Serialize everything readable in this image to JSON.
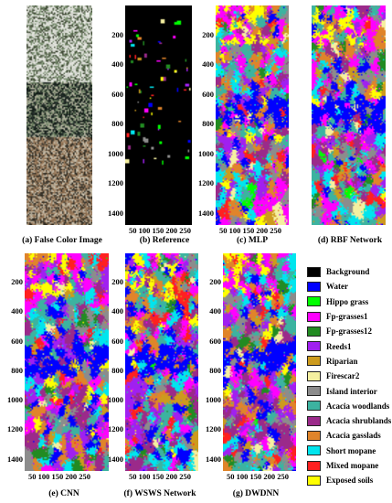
{
  "panels": [
    {
      "id": "a",
      "caption": "(a) False Color Image",
      "kind": "false-color",
      "show_y": false,
      "show_x": false
    },
    {
      "id": "b",
      "caption": "(b) Reference",
      "kind": "reference",
      "show_y": true,
      "show_x": true
    },
    {
      "id": "c",
      "caption": "(c) MLP",
      "kind": "classmap",
      "show_y": true,
      "show_x": true
    },
    {
      "id": "d",
      "caption": "(d) RBF Network",
      "kind": "classmap",
      "show_y": false,
      "show_x": false
    },
    {
      "id": "e",
      "caption": "(e) CNN",
      "kind": "classmap",
      "show_y": true,
      "show_x": true
    },
    {
      "id": "f",
      "caption": "(f) WSWS Network",
      "kind": "classmap",
      "show_y": true,
      "show_x": true
    },
    {
      "id": "g",
      "caption": "(g) DWDNN",
      "kind": "classmap",
      "show_y": true,
      "show_x": true
    }
  ],
  "y_ticks": [
    "200",
    "400",
    "600",
    "800",
    "1000",
    "1200",
    "1400"
  ],
  "x_ticks": "50 100 150 200 250",
  "legend": [
    {
      "label": "Background",
      "color": "#000000"
    },
    {
      "label": "Water",
      "color": "#0000ff"
    },
    {
      "label": "Hippo grass",
      "color": "#00ff00"
    },
    {
      "label": "Fp-grasses1",
      "color": "#ff00ff"
    },
    {
      "label": "Fp-grasses12",
      "color": "#228b22"
    },
    {
      "label": "Reeds1",
      "color": "#a020f0"
    },
    {
      "label": "Riparian",
      "color": "#cd9b1d"
    },
    {
      "label": "Firescar2",
      "color": "#f5f0a0"
    },
    {
      "label": "Island interior",
      "color": "#8c8c8c"
    },
    {
      "label": "Acacia woodlands",
      "color": "#3cb3a0"
    },
    {
      "label": "Acacia shrublands",
      "color": "#9b2a8a"
    },
    {
      "label": "Acacia gasslads",
      "color": "#e0842a"
    },
    {
      "label": "Short mopane",
      "color": "#00e5ee"
    },
    {
      "label": "Mixed mopane",
      "color": "#ff2020"
    },
    {
      "label": "Exposed soils",
      "color": "#ffff00"
    }
  ]
}
